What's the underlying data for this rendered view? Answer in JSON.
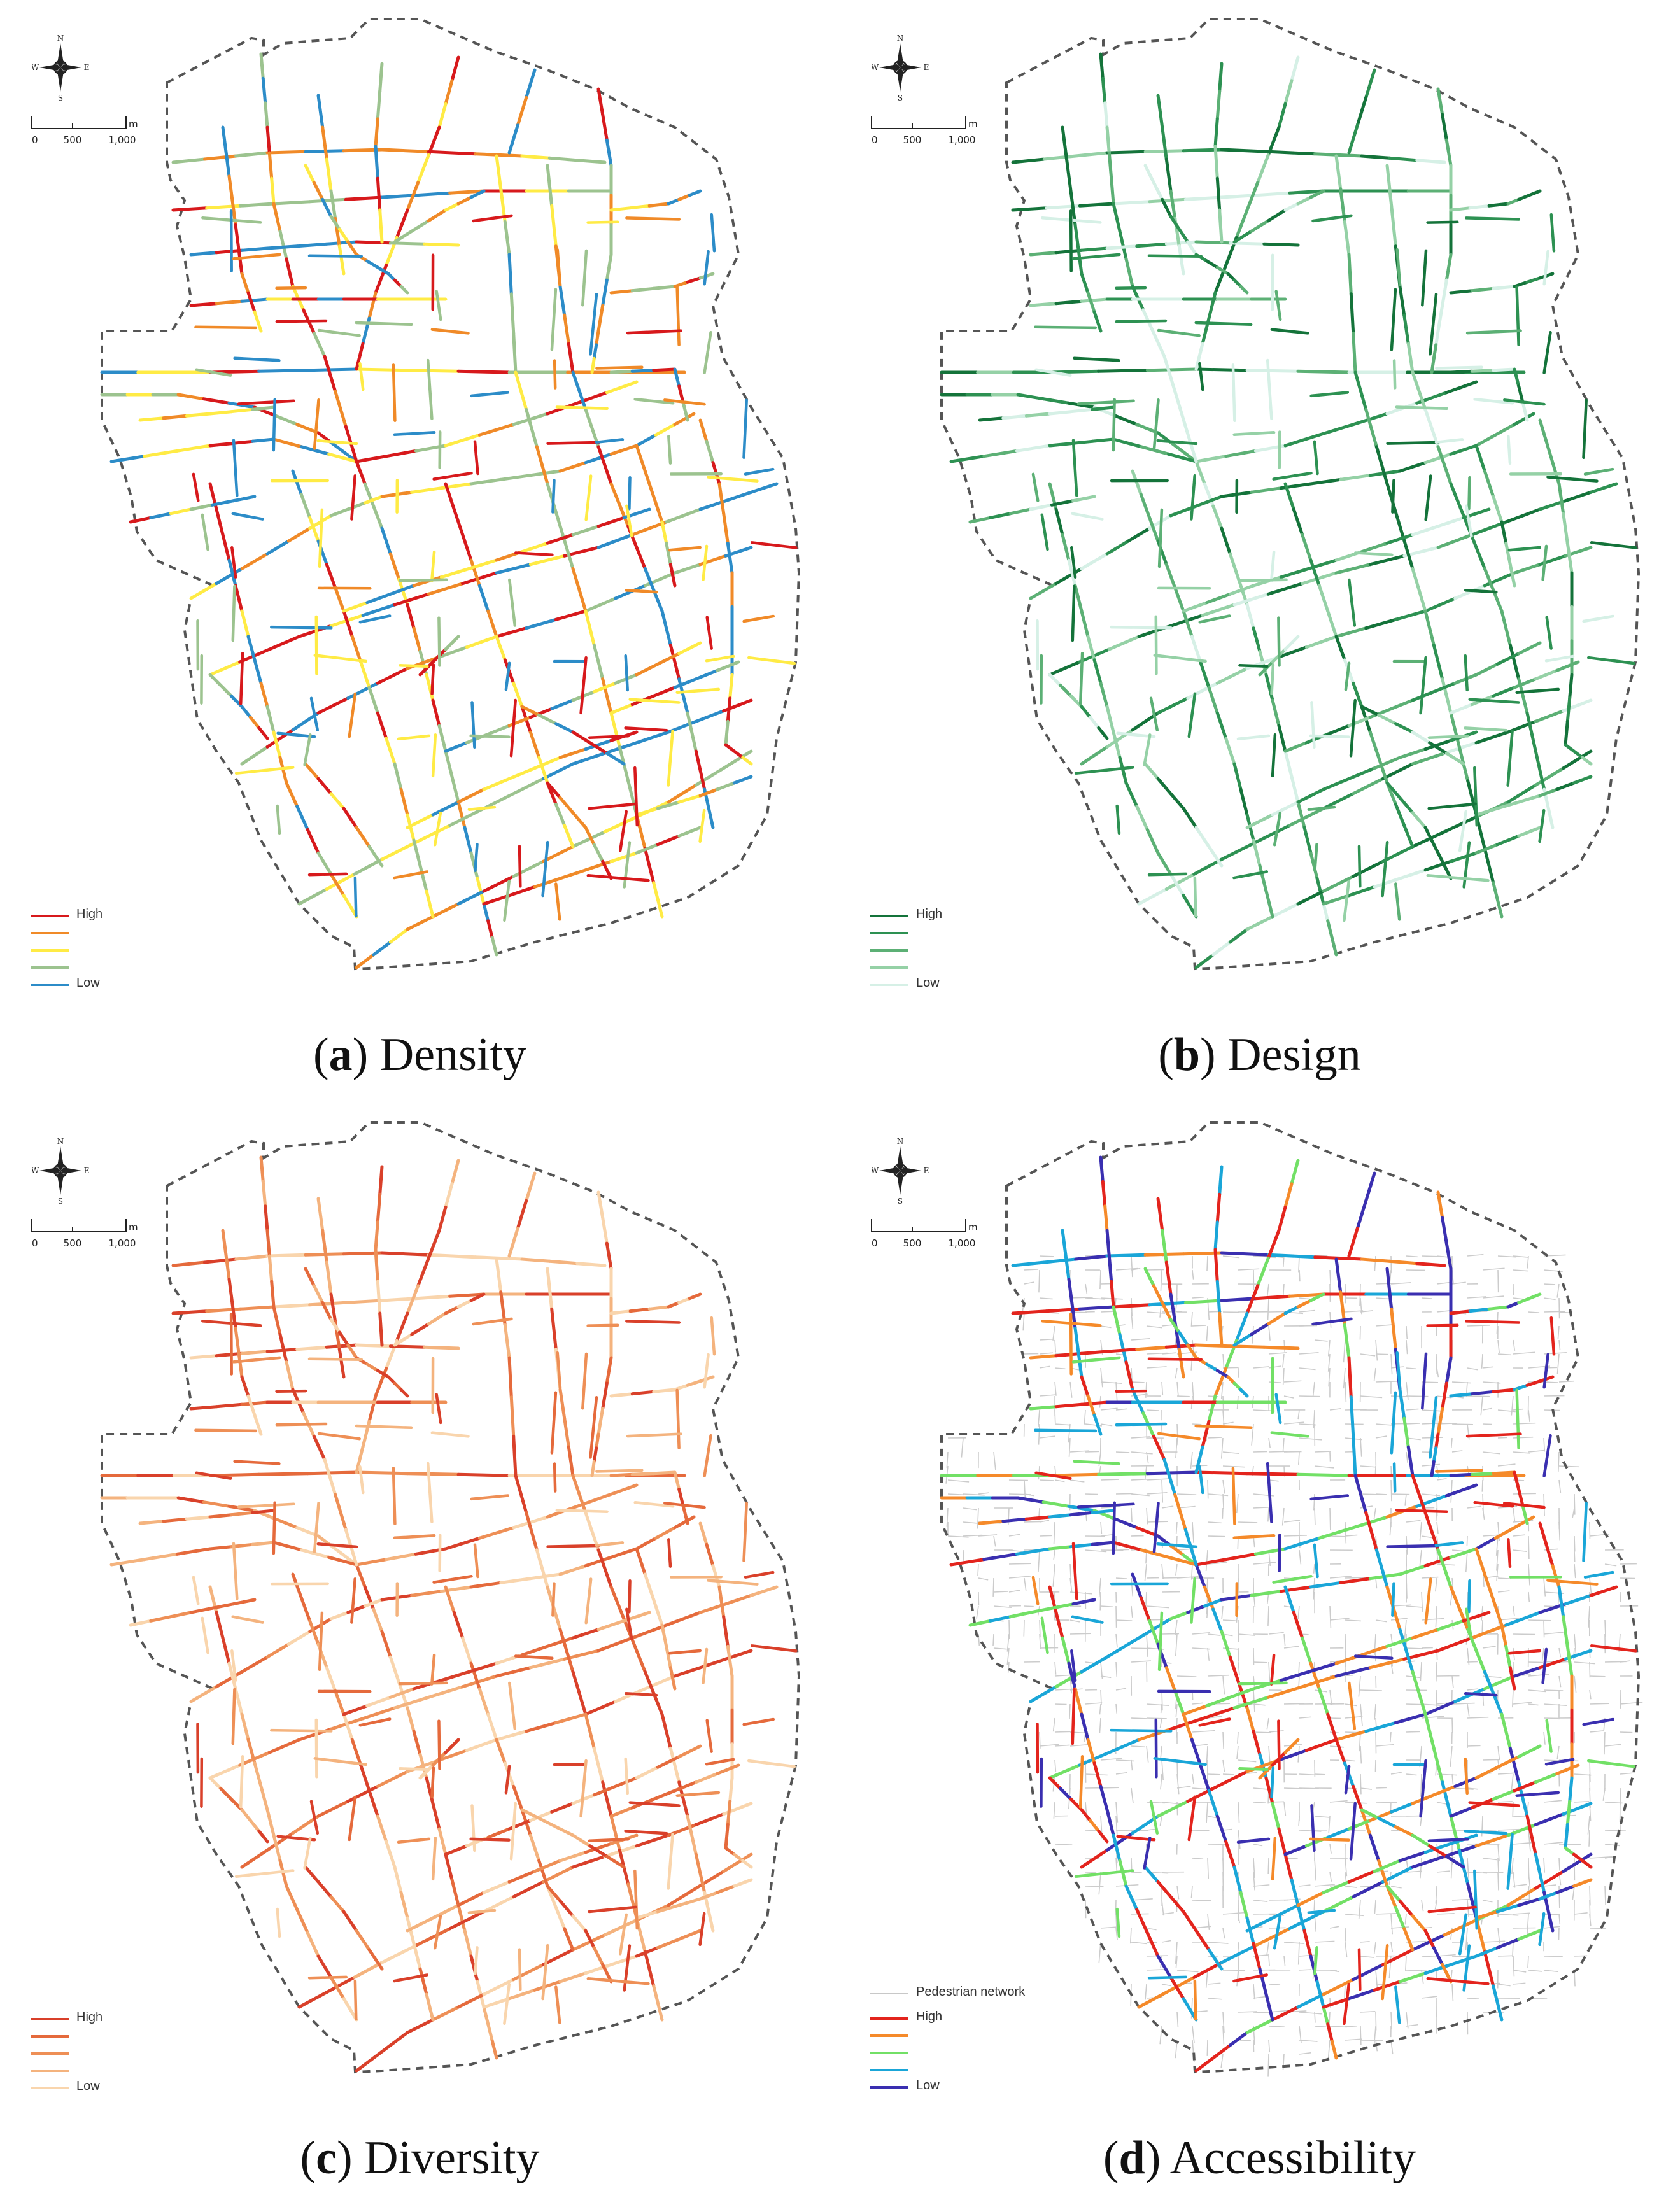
{
  "panels": [
    {
      "id": "a",
      "letter": "a",
      "caption": "Density",
      "colors": [
        "#d7191c",
        "#f08a28",
        "#ffeb45",
        "#9cc38f",
        "#2c8cc8"
      ],
      "legend": [
        "High",
        "",
        "",
        "",
        "Low"
      ],
      "show_pedestrian_network": false
    },
    {
      "id": "b",
      "letter": "b",
      "caption": "Design",
      "colors": [
        "#14733a",
        "#2d9152",
        "#5cb075",
        "#95d1a6",
        "#d6f0e6"
      ],
      "legend": [
        "High",
        "",
        "",
        "",
        "Low"
      ],
      "show_pedestrian_network": false
    },
    {
      "id": "c",
      "letter": "c",
      "caption": "Diversity",
      "colors": [
        "#d9402a",
        "#e56a3c",
        "#ee8f56",
        "#f4b37e",
        "#f9d5ad"
      ],
      "legend": [
        "High",
        "",
        "",
        "",
        "Low"
      ],
      "show_pedestrian_network": false
    },
    {
      "id": "d",
      "letter": "d",
      "caption": "Accessibility",
      "colors": [
        "#e3241d",
        "#f58a2a",
        "#72e066",
        "#1aa6d8",
        "#3a2fb0"
      ],
      "legend": [
        "High",
        "",
        "",
        "",
        "Low"
      ],
      "pedestrian_label": "Pedestrian network",
      "show_pedestrian_network": true
    }
  ],
  "compass": {
    "n": "N",
    "s": "S",
    "e": "E",
    "w": "W"
  },
  "scale": {
    "unit": "m",
    "ticks": [
      "0",
      "500",
      "1,000"
    ]
  },
  "style": {
    "boundary_color": "#555555",
    "pedestrian_color": "#cccccc"
  }
}
